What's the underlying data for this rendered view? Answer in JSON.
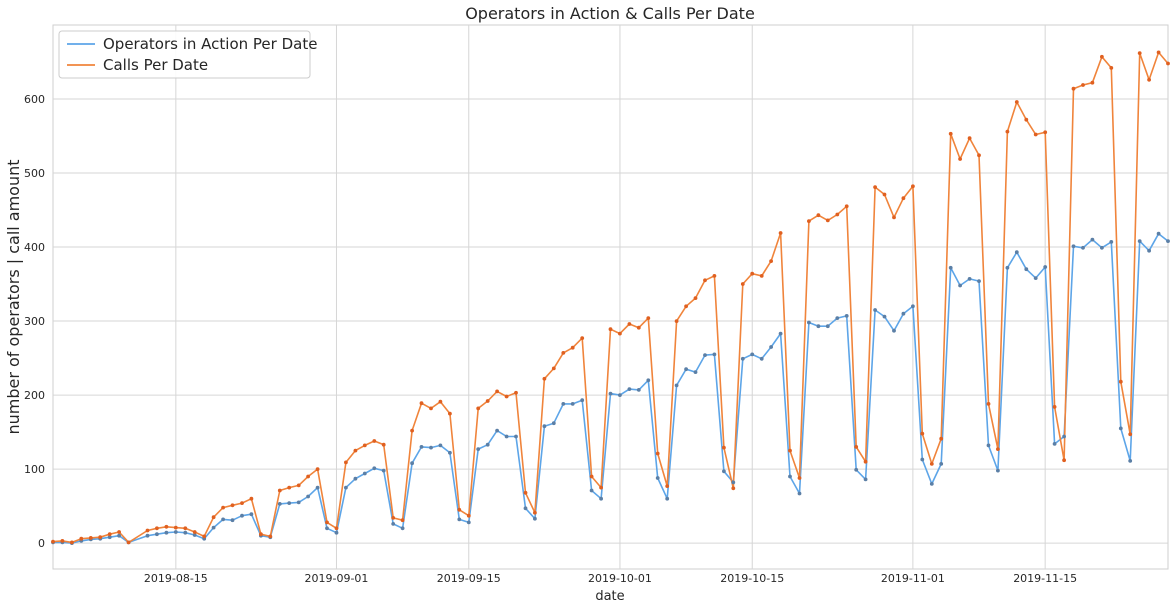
{
  "chart_data": {
    "type": "line",
    "title": "Operators in Action & Calls Per Date",
    "xlabel": "date",
    "ylabel": "number of operators | call amount",
    "x_start": "2019-08-02",
    "x_end": "2019-11-28",
    "xlim": [
      "2019-08-02",
      "2019-11-28"
    ],
    "ylim": [
      -35,
      700
    ],
    "x_ticks": [
      {
        "date": "2019-08-15",
        "label": "2019-08-15"
      },
      {
        "date": "2019-09-01",
        "label": "2019-09-01"
      },
      {
        "date": "2019-09-15",
        "label": "2019-09-15"
      },
      {
        "date": "2019-10-01",
        "label": "2019-10-01"
      },
      {
        "date": "2019-10-15",
        "label": "2019-10-15"
      },
      {
        "date": "2019-11-01",
        "label": "2019-11-01"
      },
      {
        "date": "2019-11-15",
        "label": "2019-11-15"
      }
    ],
    "y_ticks": [
      0,
      100,
      200,
      300,
      400,
      500,
      600
    ],
    "grid": true,
    "legend_position": "top-left",
    "series": [
      {
        "name": "Operators in Action Per Date",
        "color": "#5DA5E8",
        "marker_color": "#5B7FA6",
        "points": [
          [
            "2019-08-02",
            1
          ],
          [
            "2019-08-03",
            1
          ],
          [
            "2019-08-04",
            0
          ],
          [
            "2019-08-05",
            3
          ],
          [
            "2019-08-06",
            5
          ],
          [
            "2019-08-07",
            6
          ],
          [
            "2019-08-08",
            8
          ],
          [
            "2019-08-09",
            10
          ],
          [
            "2019-08-10",
            1
          ],
          [
            "2019-08-12",
            10
          ],
          [
            "2019-08-13",
            12
          ],
          [
            "2019-08-14",
            14
          ],
          [
            "2019-08-15",
            15
          ],
          [
            "2019-08-16",
            14
          ],
          [
            "2019-08-17",
            11
          ],
          [
            "2019-08-18",
            6
          ],
          [
            "2019-08-19",
            21
          ],
          [
            "2019-08-20",
            32
          ],
          [
            "2019-08-21",
            31
          ],
          [
            "2019-08-22",
            37
          ],
          [
            "2019-08-23",
            39
          ],
          [
            "2019-08-24",
            10
          ],
          [
            "2019-08-25",
            8
          ],
          [
            "2019-08-26",
            53
          ],
          [
            "2019-08-27",
            54
          ],
          [
            "2019-08-28",
            55
          ],
          [
            "2019-08-29",
            63
          ],
          [
            "2019-08-30",
            75
          ],
          [
            "2019-08-31",
            20
          ],
          [
            "2019-09-01",
            14
          ],
          [
            "2019-09-02",
            75
          ],
          [
            "2019-09-03",
            87
          ],
          [
            "2019-09-04",
            94
          ],
          [
            "2019-09-05",
            101
          ],
          [
            "2019-09-06",
            98
          ],
          [
            "2019-09-07",
            26
          ],
          [
            "2019-09-08",
            20
          ],
          [
            "2019-09-09",
            108
          ],
          [
            "2019-09-10",
            130
          ],
          [
            "2019-09-11",
            129
          ],
          [
            "2019-09-12",
            132
          ],
          [
            "2019-09-13",
            122
          ],
          [
            "2019-09-14",
            32
          ],
          [
            "2019-09-15",
            28
          ],
          [
            "2019-09-16",
            127
          ],
          [
            "2019-09-17",
            133
          ],
          [
            "2019-09-18",
            152
          ],
          [
            "2019-09-19",
            144
          ],
          [
            "2019-09-20",
            144
          ],
          [
            "2019-09-21",
            47
          ],
          [
            "2019-09-22",
            33
          ],
          [
            "2019-09-23",
            158
          ],
          [
            "2019-09-24",
            162
          ],
          [
            "2019-09-25",
            188
          ],
          [
            "2019-09-26",
            188
          ],
          [
            "2019-09-27",
            193
          ],
          [
            "2019-09-28",
            71
          ],
          [
            "2019-09-29",
            60
          ],
          [
            "2019-09-30",
            202
          ],
          [
            "2019-10-01",
            200
          ],
          [
            "2019-10-02",
            208
          ],
          [
            "2019-10-03",
            207
          ],
          [
            "2019-10-04",
            220
          ],
          [
            "2019-10-05",
            88
          ],
          [
            "2019-10-06",
            60
          ],
          [
            "2019-10-07",
            213
          ],
          [
            "2019-10-08",
            235
          ],
          [
            "2019-10-09",
            231
          ],
          [
            "2019-10-10",
            254
          ],
          [
            "2019-10-11",
            255
          ],
          [
            "2019-10-12",
            97
          ],
          [
            "2019-10-13",
            82
          ],
          [
            "2019-10-14",
            249
          ],
          [
            "2019-10-15",
            255
          ],
          [
            "2019-10-16",
            249
          ],
          [
            "2019-10-17",
            265
          ],
          [
            "2019-10-18",
            283
          ],
          [
            "2019-10-19",
            90
          ],
          [
            "2019-10-20",
            67
          ],
          [
            "2019-10-21",
            298
          ],
          [
            "2019-10-22",
            293
          ],
          [
            "2019-10-23",
            293
          ],
          [
            "2019-10-24",
            304
          ],
          [
            "2019-10-25",
            307
          ],
          [
            "2019-10-26",
            99
          ],
          [
            "2019-10-27",
            86
          ],
          [
            "2019-10-28",
            315
          ],
          [
            "2019-10-29",
            306
          ],
          [
            "2019-10-30",
            287
          ],
          [
            "2019-10-31",
            310
          ],
          [
            "2019-11-01",
            320
          ],
          [
            "2019-11-02",
            113
          ],
          [
            "2019-11-03",
            80
          ],
          [
            "2019-11-04",
            107
          ],
          [
            "2019-11-05",
            372
          ],
          [
            "2019-11-06",
            348
          ],
          [
            "2019-11-07",
            357
          ],
          [
            "2019-11-08",
            354
          ],
          [
            "2019-11-09",
            132
          ],
          [
            "2019-11-10",
            98
          ],
          [
            "2019-11-11",
            372
          ],
          [
            "2019-11-12",
            393
          ],
          [
            "2019-11-13",
            370
          ],
          [
            "2019-11-14",
            358
          ],
          [
            "2019-11-15",
            373
          ],
          [
            "2019-11-16",
            134
          ],
          [
            "2019-11-17",
            144
          ],
          [
            "2019-11-18",
            401
          ],
          [
            "2019-11-19",
            399
          ],
          [
            "2019-11-20",
            410
          ],
          [
            "2019-11-21",
            399
          ],
          [
            "2019-11-22",
            407
          ],
          [
            "2019-11-23",
            155
          ],
          [
            "2019-11-24",
            111
          ],
          [
            "2019-11-25",
            408
          ],
          [
            "2019-11-26",
            395
          ],
          [
            "2019-11-27",
            418
          ],
          [
            "2019-11-28",
            408
          ]
        ]
      },
      {
        "name": "Calls Per Date",
        "color": "#F0843B",
        "marker_color": "#E06020",
        "points": [
          [
            "2019-08-02",
            2
          ],
          [
            "2019-08-03",
            3
          ],
          [
            "2019-08-04",
            1
          ],
          [
            "2019-08-05",
            6
          ],
          [
            "2019-08-06",
            7
          ],
          [
            "2019-08-07",
            8
          ],
          [
            "2019-08-08",
            12
          ],
          [
            "2019-08-09",
            15
          ],
          [
            "2019-08-10",
            1
          ],
          [
            "2019-08-12",
            17
          ],
          [
            "2019-08-13",
            20
          ],
          [
            "2019-08-14",
            22
          ],
          [
            "2019-08-15",
            21
          ],
          [
            "2019-08-16",
            20
          ],
          [
            "2019-08-17",
            15
          ],
          [
            "2019-08-18",
            9
          ],
          [
            "2019-08-19",
            35
          ],
          [
            "2019-08-20",
            48
          ],
          [
            "2019-08-21",
            51
          ],
          [
            "2019-08-22",
            54
          ],
          [
            "2019-08-23",
            60
          ],
          [
            "2019-08-24",
            12
          ],
          [
            "2019-08-25",
            9
          ],
          [
            "2019-08-26",
            71
          ],
          [
            "2019-08-27",
            75
          ],
          [
            "2019-08-28",
            78
          ],
          [
            "2019-08-29",
            90
          ],
          [
            "2019-08-30",
            100
          ],
          [
            "2019-08-31",
            28
          ],
          [
            "2019-09-01",
            20
          ],
          [
            "2019-09-02",
            109
          ],
          [
            "2019-09-03",
            125
          ],
          [
            "2019-09-04",
            132
          ],
          [
            "2019-09-05",
            138
          ],
          [
            "2019-09-06",
            133
          ],
          [
            "2019-09-07",
            34
          ],
          [
            "2019-09-08",
            31
          ],
          [
            "2019-09-09",
            152
          ],
          [
            "2019-09-10",
            189
          ],
          [
            "2019-09-11",
            182
          ],
          [
            "2019-09-12",
            191
          ],
          [
            "2019-09-13",
            175
          ],
          [
            "2019-09-14",
            45
          ],
          [
            "2019-09-15",
            37
          ],
          [
            "2019-09-16",
            182
          ],
          [
            "2019-09-17",
            192
          ],
          [
            "2019-09-18",
            205
          ],
          [
            "2019-09-19",
            198
          ],
          [
            "2019-09-20",
            203
          ],
          [
            "2019-09-21",
            68
          ],
          [
            "2019-09-22",
            41
          ],
          [
            "2019-09-23",
            222
          ],
          [
            "2019-09-24",
            236
          ],
          [
            "2019-09-25",
            257
          ],
          [
            "2019-09-26",
            264
          ],
          [
            "2019-09-27",
            277
          ],
          [
            "2019-09-28",
            90
          ],
          [
            "2019-09-29",
            75
          ],
          [
            "2019-09-30",
            289
          ],
          [
            "2019-10-01",
            283
          ],
          [
            "2019-10-02",
            296
          ],
          [
            "2019-10-03",
            291
          ],
          [
            "2019-10-04",
            304
          ],
          [
            "2019-10-05",
            121
          ],
          [
            "2019-10-06",
            77
          ],
          [
            "2019-10-07",
            300
          ],
          [
            "2019-10-08",
            320
          ],
          [
            "2019-10-09",
            331
          ],
          [
            "2019-10-10",
            355
          ],
          [
            "2019-10-11",
            361
          ],
          [
            "2019-10-12",
            129
          ],
          [
            "2019-10-13",
            74
          ],
          [
            "2019-10-14",
            350
          ],
          [
            "2019-10-15",
            364
          ],
          [
            "2019-10-16",
            361
          ],
          [
            "2019-10-17",
            381
          ],
          [
            "2019-10-18",
            419
          ],
          [
            "2019-10-19",
            125
          ],
          [
            "2019-10-20",
            88
          ],
          [
            "2019-10-21",
            435
          ],
          [
            "2019-10-22",
            443
          ],
          [
            "2019-10-23",
            436
          ],
          [
            "2019-10-24",
            444
          ],
          [
            "2019-10-25",
            455
          ],
          [
            "2019-10-26",
            130
          ],
          [
            "2019-10-27",
            110
          ],
          [
            "2019-10-28",
            481
          ],
          [
            "2019-10-29",
            471
          ],
          [
            "2019-10-30",
            440
          ],
          [
            "2019-10-31",
            466
          ],
          [
            "2019-11-01",
            482
          ],
          [
            "2019-11-02",
            148
          ],
          [
            "2019-11-03",
            107
          ],
          [
            "2019-11-04",
            141
          ],
          [
            "2019-11-05",
            553
          ],
          [
            "2019-11-06",
            519
          ],
          [
            "2019-11-07",
            547
          ],
          [
            "2019-11-08",
            524
          ],
          [
            "2019-11-09",
            188
          ],
          [
            "2019-11-10",
            127
          ],
          [
            "2019-11-11",
            556
          ],
          [
            "2019-11-12",
            596
          ],
          [
            "2019-11-13",
            572
          ],
          [
            "2019-11-14",
            552
          ],
          [
            "2019-11-15",
            555
          ],
          [
            "2019-11-16",
            184
          ],
          [
            "2019-11-17",
            112
          ],
          [
            "2019-11-18",
            614
          ],
          [
            "2019-11-19",
            619
          ],
          [
            "2019-11-20",
            622
          ],
          [
            "2019-11-21",
            657
          ],
          [
            "2019-11-22",
            642
          ],
          [
            "2019-11-23",
            218
          ],
          [
            "2019-11-24",
            147
          ],
          [
            "2019-11-25",
            662
          ],
          [
            "2019-11-26",
            626
          ],
          [
            "2019-11-27",
            663
          ],
          [
            "2019-11-28",
            648
          ]
        ]
      }
    ]
  }
}
